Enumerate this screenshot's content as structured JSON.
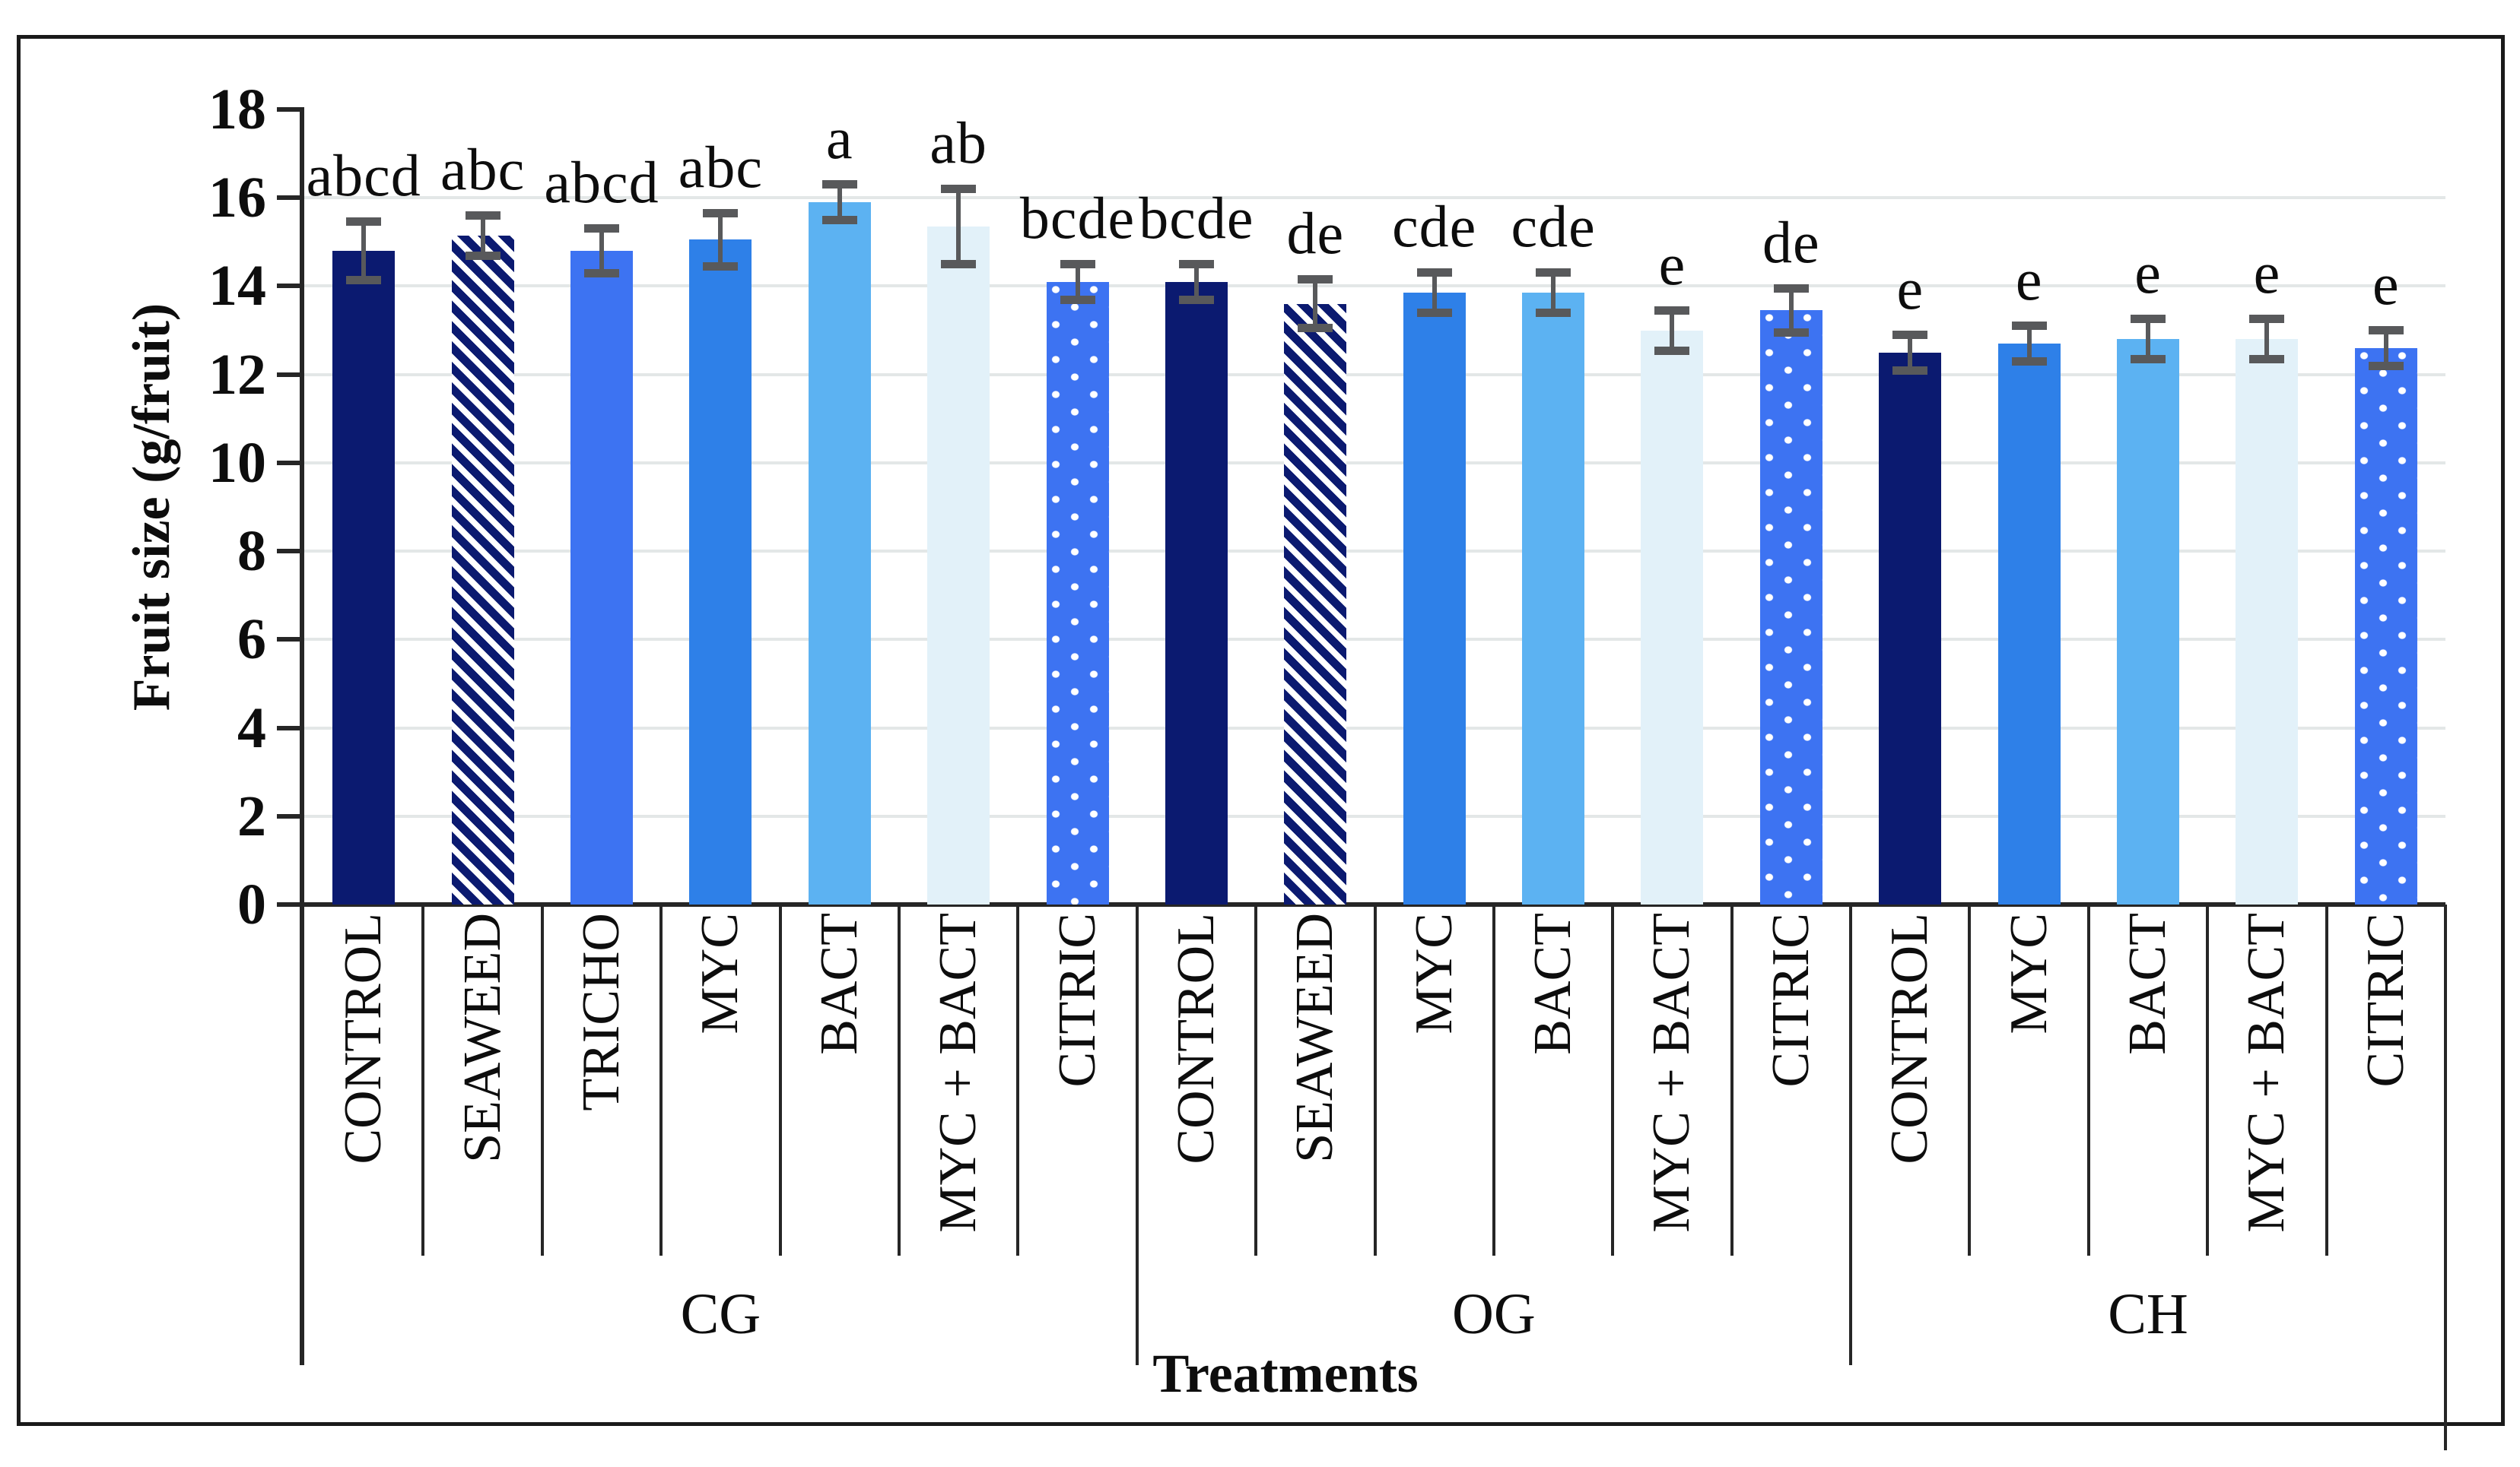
{
  "labels": {
    "y_axis_title": "Fruit size (g/fruit)",
    "x_axis_title": "Treatments"
  },
  "chart_data": {
    "type": "bar",
    "title": "",
    "ylabel": "Fruit size (g/fruit)",
    "xlabel": "Treatments",
    "ylim": [
      0,
      18
    ],
    "ytick_step": 2,
    "ytick_labels": [
      "0",
      "2",
      "4",
      "6",
      "8",
      "10",
      "12",
      "14",
      "16",
      "18"
    ],
    "grid": true,
    "legend_position": "none",
    "error_bars": "plus-minus-sd",
    "colors": {
      "navy": "#0b1a70",
      "royal_blue": "#3d73f2",
      "medium_blue": "#2e80e8",
      "sky_blue": "#5cb2f2",
      "pale_blue": "#e2f1f9",
      "error_bar": "#58595b",
      "gridline": "#e3e7e7",
      "axis": "#262626"
    },
    "fill_styles": {
      "CONTROL": {
        "pattern": "solid",
        "color": "navy"
      },
      "SEAWEED": {
        "pattern": "diagonal-stripes",
        "color": "navy"
      },
      "TRICHO": {
        "pattern": "solid",
        "color": "royal_blue"
      },
      "MYC": {
        "pattern": "solid",
        "color": "medium_blue"
      },
      "BACT": {
        "pattern": "solid",
        "color": "sky_blue"
      },
      "MYC + BACT": {
        "pattern": "solid",
        "color": "pale_blue"
      },
      "CITRIC": {
        "pattern": "white-dots",
        "color": "royal_blue"
      }
    },
    "groups": [
      {
        "name": "CG",
        "bars": [
          {
            "category": "CONTROL",
            "value": 14.8,
            "error": 0.75,
            "sig": "abcd"
          },
          {
            "category": "SEAWEED",
            "value": 15.15,
            "error": 0.55,
            "sig": "abc"
          },
          {
            "category": "TRICHO",
            "value": 14.8,
            "error": 0.6,
            "sig": "abcd"
          },
          {
            "category": "MYC",
            "value": 15.05,
            "error": 0.7,
            "sig": "abc"
          },
          {
            "category": "BACT",
            "value": 15.9,
            "error": 0.5,
            "sig": "a"
          },
          {
            "category": "MYC + BACT",
            "value": 15.35,
            "error": 0.95,
            "sig": "ab"
          },
          {
            "category": "CITRIC",
            "value": 14.1,
            "error": 0.5,
            "sig": "bcde"
          }
        ]
      },
      {
        "name": "OG",
        "bars": [
          {
            "category": "CONTROL",
            "value": 14.1,
            "error": 0.5,
            "sig": "bcde"
          },
          {
            "category": "SEAWEED",
            "value": 13.6,
            "error": 0.65,
            "sig": "de"
          },
          {
            "category": "MYC",
            "value": 13.85,
            "error": 0.55,
            "sig": "cde"
          },
          {
            "category": "BACT",
            "value": 13.85,
            "error": 0.55,
            "sig": "cde"
          },
          {
            "category": "MYC + BACT",
            "value": 13.0,
            "error": 0.55,
            "sig": "e"
          },
          {
            "category": "CITRIC",
            "value": 13.45,
            "error": 0.6,
            "sig": "de"
          }
        ]
      },
      {
        "name": "CH",
        "bars": [
          {
            "category": "CONTROL",
            "value": 12.5,
            "error": 0.5,
            "sig": "e"
          },
          {
            "category": "MYC",
            "value": 12.7,
            "error": 0.5,
            "sig": "e"
          },
          {
            "category": "BACT",
            "value": 12.8,
            "error": 0.55,
            "sig": "e"
          },
          {
            "category": "MYC + BACT",
            "value": 12.8,
            "error": 0.55,
            "sig": "e"
          },
          {
            "category": "CITRIC",
            "value": 12.6,
            "error": 0.5,
            "sig": "e"
          }
        ]
      }
    ]
  }
}
